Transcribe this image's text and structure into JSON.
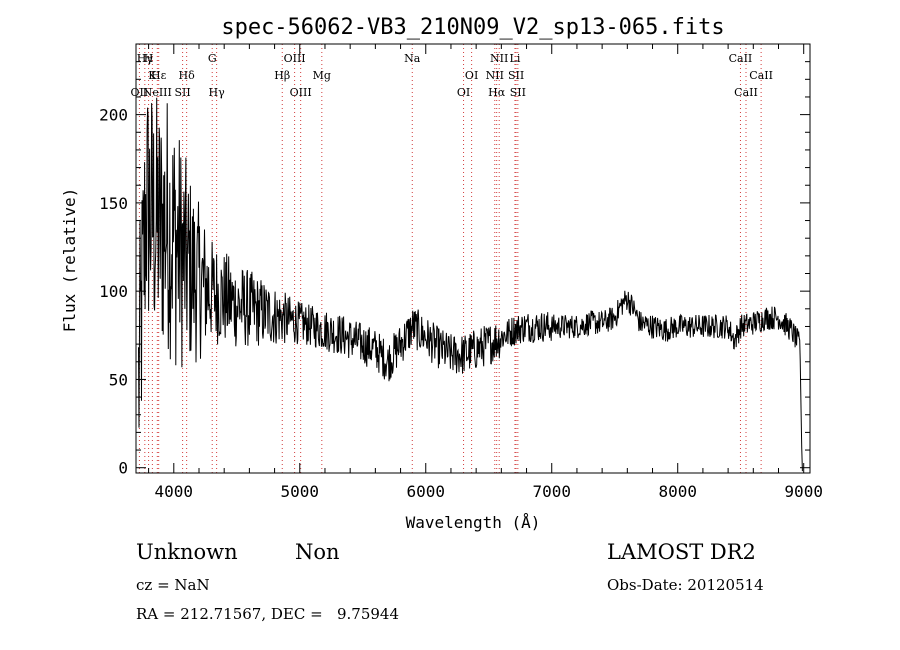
{
  "chart_data": {
    "type": "line",
    "title": "spec-56062-VB3_210N09_V2_sp13-065.fits",
    "xlabel": "Wavelength (Å)",
    "ylabel": "Flux (relative)",
    "xlim": [
      3700,
      9050
    ],
    "ylim": [
      -3,
      240
    ],
    "xticks": [
      4000,
      5000,
      6000,
      7000,
      8000,
      9000
    ],
    "yticks": [
      0,
      50,
      100,
      150,
      200
    ],
    "line_color": "#000000",
    "marker_color": "#d23c3c",
    "spectrum_envelope": {
      "x": [
        3720,
        3780,
        3850,
        3900,
        3950,
        4000,
        4100,
        4200,
        4300,
        4400,
        4500,
        4600,
        4700,
        4800,
        4900,
        5000,
        5100,
        5200,
        5300,
        5400,
        5500,
        5600,
        5700,
        5800,
        5900,
        6000,
        6100,
        6200,
        6300,
        6400,
        6500,
        6600,
        6700,
        6800,
        6900,
        7000,
        7100,
        7200,
        7300,
        7400,
        7500,
        7550,
        7600,
        7650,
        7700,
        7800,
        7900,
        8000,
        8100,
        8200,
        8300,
        8400,
        8450,
        8500,
        8600,
        8700,
        8800,
        8900,
        8980
      ],
      "y": [
        45,
        150,
        140,
        135,
        140,
        130,
        115,
        105,
        100,
        96,
        92,
        90,
        88,
        86,
        84,
        82,
        80,
        78,
        76,
        73,
        70,
        67,
        60,
        70,
        80,
        74,
        68,
        64,
        64,
        67,
        70,
        74,
        78,
        80,
        80,
        80,
        80,
        80,
        82,
        82,
        85,
        92,
        96,
        90,
        82,
        80,
        78,
        80,
        80,
        80,
        80,
        80,
        72,
        80,
        82,
        85,
        85,
        78,
        68
      ]
    },
    "lines": [
      {
        "label": "Hγ",
        "x": 3770,
        "row": 1
      },
      {
        "label": "H",
        "x": 3800,
        "row": 1
      },
      {
        "label": "K",
        "x": 3830,
        "row": 2
      },
      {
        "label": "Hε",
        "x": 3880,
        "row": 2
      },
      {
        "label": "OII",
        "x": 3727,
        "row": 3
      },
      {
        "label": "NeIII",
        "x": 3869,
        "row": 3
      },
      {
        "label": "SII",
        "x": 4070,
        "row": 3
      },
      {
        "label": "Hδ",
        "x": 4102,
        "row": 2
      },
      {
        "label": "G",
        "x": 4305,
        "row": 1
      },
      {
        "label": "Hγ",
        "x": 4340,
        "row": 3
      },
      {
        "label": "OIII",
        "x": 4959,
        "row": 1
      },
      {
        "label": "Hβ",
        "x": 4861,
        "row": 2
      },
      {
        "label": "OIII",
        "x": 5007,
        "row": 3
      },
      {
        "label": "Mg",
        "x": 5175,
        "row": 2
      },
      {
        "label": "Na",
        "x": 5893,
        "row": 1
      },
      {
        "label": "OI",
        "x": 6364,
        "row": 2
      },
      {
        "label": "OI",
        "x": 6300,
        "row": 3
      },
      {
        "label": "NII",
        "x": 6583,
        "row": 1
      },
      {
        "label": "Li",
        "x": 6708,
        "row": 1
      },
      {
        "label": "NII",
        "x": 6548,
        "row": 2
      },
      {
        "label": "SII",
        "x": 6717,
        "row": 2
      },
      {
        "label": "Hα",
        "x": 6563,
        "row": 3
      },
      {
        "label": "SII",
        "x": 6731,
        "row": 3
      },
      {
        "label": "CaII",
        "x": 8498,
        "row": 1
      },
      {
        "label": "CaII",
        "x": 8662,
        "row": 2
      },
      {
        "label": "CaII",
        "x": 8542,
        "row": 3
      }
    ]
  },
  "info": {
    "class_text": "Unknown",
    "subclass_text": "Non",
    "survey_text": "LAMOST DR2",
    "cz_text": "cz = NaN",
    "obsdate_text": "Obs-Date: 20120514",
    "coords_text": "RA = 212.71567, DEC =   9.75944"
  }
}
